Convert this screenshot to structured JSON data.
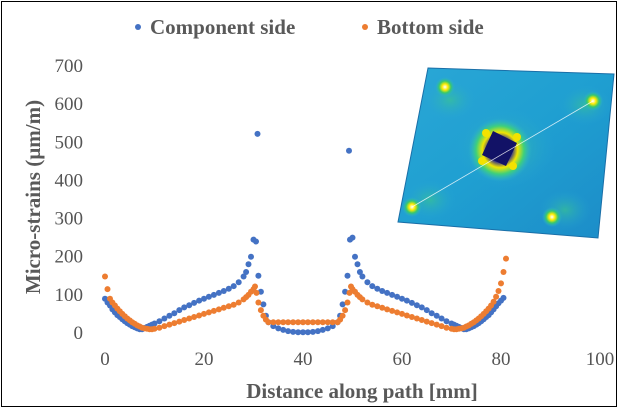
{
  "chart_data": {
    "type": "scatter",
    "xlabel": "Distance along path [mm]",
    "ylabel": "Micro-strains (µm/m)",
    "xlim": [
      0,
      100
    ],
    "ylim": [
      0,
      700
    ],
    "x_ticks": [
      "0",
      "20",
      "40",
      "60",
      "80",
      "100"
    ],
    "y_ticks": [
      "0",
      "100",
      "200",
      "300",
      "400",
      "500",
      "600",
      "700"
    ],
    "grid": false,
    "legend_position": "top",
    "series": [
      {
        "name": "Component side",
        "color": "#4472C4",
        "points": [
          [
            0,
            90
          ],
          [
            0.5,
            80
          ],
          [
            1,
            72
          ],
          [
            1.5,
            62
          ],
          [
            2,
            54
          ],
          [
            2.5,
            47
          ],
          [
            3,
            42
          ],
          [
            3.5,
            36
          ],
          [
            4,
            31
          ],
          [
            4.5,
            26
          ],
          [
            5,
            22
          ],
          [
            5.5,
            18
          ],
          [
            6,
            15
          ],
          [
            6.5,
            12
          ],
          [
            7,
            10
          ],
          [
            7.5,
            10
          ],
          [
            8,
            13
          ],
          [
            8.5,
            16
          ],
          [
            9,
            19
          ],
          [
            9.5,
            22
          ],
          [
            10,
            25
          ],
          [
            11,
            31
          ],
          [
            12,
            38
          ],
          [
            13,
            45
          ],
          [
            14,
            52
          ],
          [
            15,
            60
          ],
          [
            16,
            67
          ],
          [
            17,
            73
          ],
          [
            18,
            79
          ],
          [
            19,
            85
          ],
          [
            20,
            90
          ],
          [
            21,
            95
          ],
          [
            22,
            100
          ],
          [
            23,
            105
          ],
          [
            24,
            110
          ],
          [
            25,
            116
          ],
          [
            26,
            123
          ],
          [
            27,
            133
          ],
          [
            28,
            148
          ],
          [
            28.5,
            160
          ],
          [
            29,
            180
          ],
          [
            29.5,
            200
          ],
          [
            30,
            245
          ],
          [
            30.5,
            240
          ],
          [
            30.8,
            522
          ],
          [
            31,
            150
          ],
          [
            31.5,
            108
          ],
          [
            32,
            75
          ],
          [
            32.5,
            45
          ],
          [
            33,
            28
          ],
          [
            34,
            18
          ],
          [
            35,
            12
          ],
          [
            36,
            8
          ],
          [
            37,
            5
          ],
          [
            38,
            3
          ],
          [
            39,
            2
          ],
          [
            40,
            2
          ],
          [
            41,
            2
          ],
          [
            42,
            3
          ],
          [
            43,
            5
          ],
          [
            44,
            8
          ],
          [
            45,
            12
          ],
          [
            46,
            18
          ],
          [
            47,
            28
          ],
          [
            47.5,
            45
          ],
          [
            48,
            75
          ],
          [
            48.5,
            108
          ],
          [
            49,
            150
          ],
          [
            49.3,
            478
          ],
          [
            49.5,
            245
          ],
          [
            50,
            250
          ],
          [
            50.5,
            200
          ],
          [
            51,
            180
          ],
          [
            51.5,
            160
          ],
          [
            52,
            148
          ],
          [
            53,
            133
          ],
          [
            54,
            123
          ],
          [
            55,
            116
          ],
          [
            56,
            110
          ],
          [
            57,
            105
          ],
          [
            58,
            100
          ],
          [
            59,
            95
          ],
          [
            60,
            90
          ],
          [
            61,
            85
          ],
          [
            62,
            79
          ],
          [
            63,
            73
          ],
          [
            64,
            67
          ],
          [
            65,
            60
          ],
          [
            66,
            52
          ],
          [
            67,
            45
          ],
          [
            68,
            38
          ],
          [
            69,
            31
          ],
          [
            70,
            25
          ],
          [
            70.5,
            22
          ],
          [
            71,
            19
          ],
          [
            71.5,
            16
          ],
          [
            72,
            13
          ],
          [
            72.5,
            10
          ],
          [
            73,
            10
          ],
          [
            73.5,
            12
          ],
          [
            74,
            15
          ],
          [
            74.5,
            18
          ],
          [
            75,
            22
          ],
          [
            75.5,
            26
          ],
          [
            76,
            31
          ],
          [
            76.5,
            36
          ],
          [
            77,
            42
          ],
          [
            77.5,
            47
          ],
          [
            78,
            54
          ],
          [
            78.5,
            62
          ],
          [
            79,
            70
          ],
          [
            79.5,
            78
          ],
          [
            80,
            85
          ],
          [
            80.5,
            92
          ]
        ]
      },
      {
        "name": "Bottom side",
        "color": "#ED7D31",
        "points": [
          [
            0,
            148
          ],
          [
            0.5,
            115
          ],
          [
            1,
            90
          ],
          [
            1.5,
            80
          ],
          [
            2,
            72
          ],
          [
            2.5,
            64
          ],
          [
            3,
            57
          ],
          [
            3.5,
            50
          ],
          [
            4,
            44
          ],
          [
            4.5,
            38
          ],
          [
            5,
            33
          ],
          [
            5.5,
            28
          ],
          [
            6,
            24
          ],
          [
            6.5,
            20
          ],
          [
            7,
            17
          ],
          [
            7.5,
            14
          ],
          [
            8,
            12
          ],
          [
            8.5,
            11
          ],
          [
            9,
            10
          ],
          [
            9.5,
            10
          ],
          [
            10,
            11
          ],
          [
            11,
            14
          ],
          [
            12,
            18
          ],
          [
            13,
            22
          ],
          [
            14,
            26
          ],
          [
            15,
            30
          ],
          [
            16,
            34
          ],
          [
            17,
            38
          ],
          [
            18,
            42
          ],
          [
            19,
            46
          ],
          [
            20,
            50
          ],
          [
            21,
            54
          ],
          [
            22,
            58
          ],
          [
            23,
            62
          ],
          [
            24,
            66
          ],
          [
            25,
            70
          ],
          [
            26,
            74
          ],
          [
            27,
            80
          ],
          [
            28,
            88
          ],
          [
            28.5,
            94
          ],
          [
            29,
            100
          ],
          [
            29.5,
            108
          ],
          [
            30,
            115
          ],
          [
            30.3,
            122
          ],
          [
            30.6,
            105
          ],
          [
            31,
            80
          ],
          [
            31.5,
            60
          ],
          [
            32,
            45
          ],
          [
            32.5,
            35
          ],
          [
            33,
            28
          ],
          [
            34,
            28
          ],
          [
            35,
            28
          ],
          [
            36,
            28
          ],
          [
            37,
            28
          ],
          [
            38,
            28
          ],
          [
            39,
            28
          ],
          [
            40,
            28
          ],
          [
            41,
            28
          ],
          [
            42,
            28
          ],
          [
            43,
            28
          ],
          [
            44,
            28
          ],
          [
            45,
            28
          ],
          [
            46,
            28
          ],
          [
            47,
            28
          ],
          [
            47.5,
            35
          ],
          [
            48,
            45
          ],
          [
            48.5,
            60
          ],
          [
            49,
            80
          ],
          [
            49.4,
            105
          ],
          [
            49.7,
            122
          ],
          [
            50,
            115
          ],
          [
            50.5,
            108
          ],
          [
            51,
            100
          ],
          [
            51.5,
            94
          ],
          [
            52,
            88
          ],
          [
            53,
            80
          ],
          [
            54,
            74
          ],
          [
            55,
            70
          ],
          [
            56,
            66
          ],
          [
            57,
            62
          ],
          [
            58,
            58
          ],
          [
            59,
            54
          ],
          [
            60,
            50
          ],
          [
            61,
            46
          ],
          [
            62,
            42
          ],
          [
            63,
            38
          ],
          [
            64,
            34
          ],
          [
            65,
            30
          ],
          [
            66,
            26
          ],
          [
            67,
            22
          ],
          [
            68,
            18
          ],
          [
            69,
            14
          ],
          [
            70,
            11
          ],
          [
            70.5,
            10
          ],
          [
            71,
            10
          ],
          [
            71.5,
            11
          ],
          [
            72,
            12
          ],
          [
            72.5,
            14
          ],
          [
            73,
            17
          ],
          [
            73.5,
            20
          ],
          [
            74,
            24
          ],
          [
            74.5,
            28
          ],
          [
            75,
            33
          ],
          [
            75.5,
            38
          ],
          [
            76,
            44
          ],
          [
            76.5,
            50
          ],
          [
            77,
            57
          ],
          [
            77.5,
            64
          ],
          [
            78,
            72
          ],
          [
            78.5,
            82
          ],
          [
            79,
            95
          ],
          [
            79.5,
            110
          ],
          [
            80,
            130
          ],
          [
            80.5,
            160
          ],
          [
            81,
            195
          ]
        ]
      }
    ]
  },
  "inset": {
    "description_icon": "fea-strain-contour-plate"
  }
}
